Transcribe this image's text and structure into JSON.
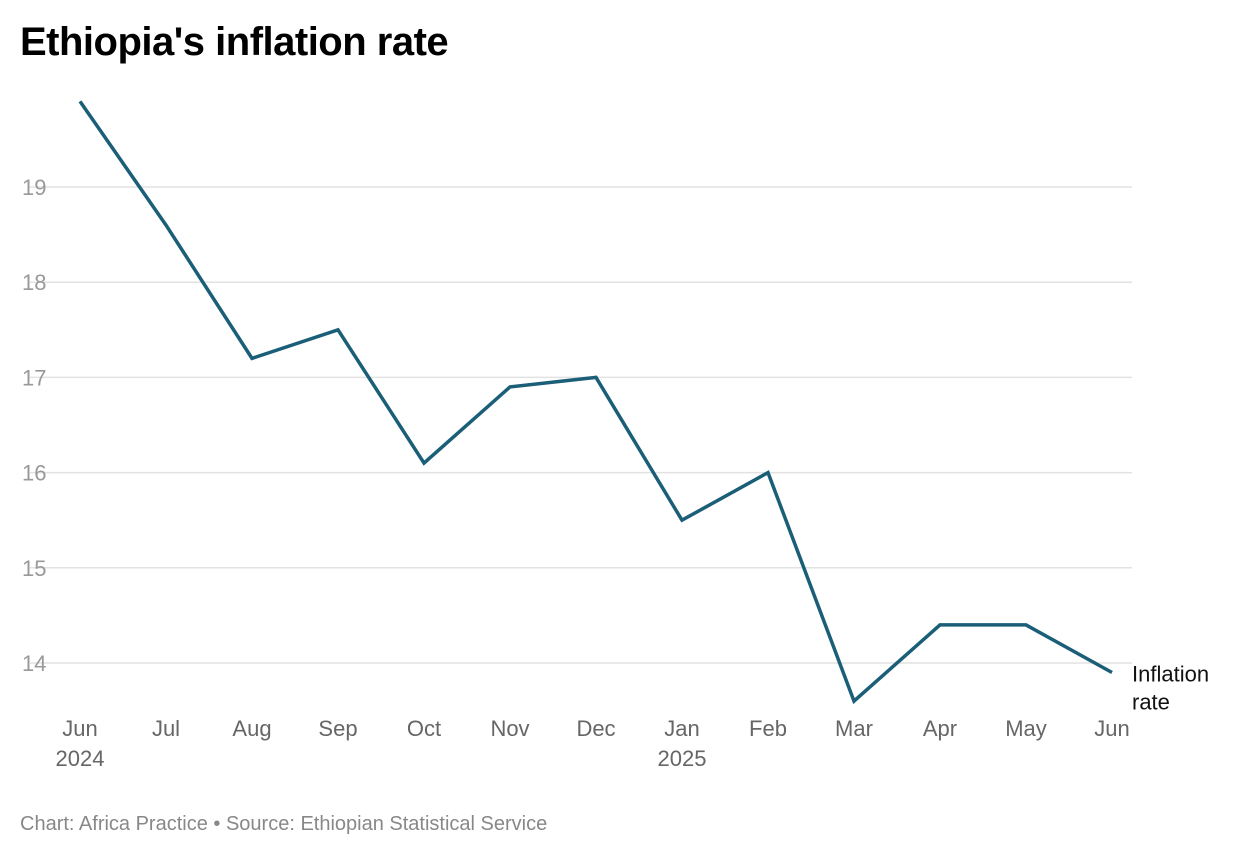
{
  "chart_data": {
    "type": "line",
    "title": "Ethiopia's inflation rate",
    "footer": "Chart: Africa Practice • Source: Ethiopian Statistical Service",
    "x": [
      "Jun",
      "Jul",
      "Aug",
      "Sep",
      "Oct",
      "Nov",
      "Dec",
      "Jan",
      "Feb",
      "Mar",
      "Apr",
      "May",
      "Jun"
    ],
    "x_year_labels": {
      "0": "2024",
      "7": "2025"
    },
    "series": [
      {
        "name": "Inflation rate",
        "values": [
          19.9,
          18.6,
          17.2,
          17.5,
          16.1,
          16.9,
          17.0,
          15.5,
          16.0,
          13.6,
          14.4,
          14.4,
          13.9
        ],
        "color": "#1a5e78"
      }
    ],
    "series_label_lines": [
      "Inflation",
      "rate"
    ],
    "yticks": [
      14,
      15,
      16,
      17,
      18,
      19
    ],
    "grid": true,
    "legend": "inline-end-label"
  }
}
